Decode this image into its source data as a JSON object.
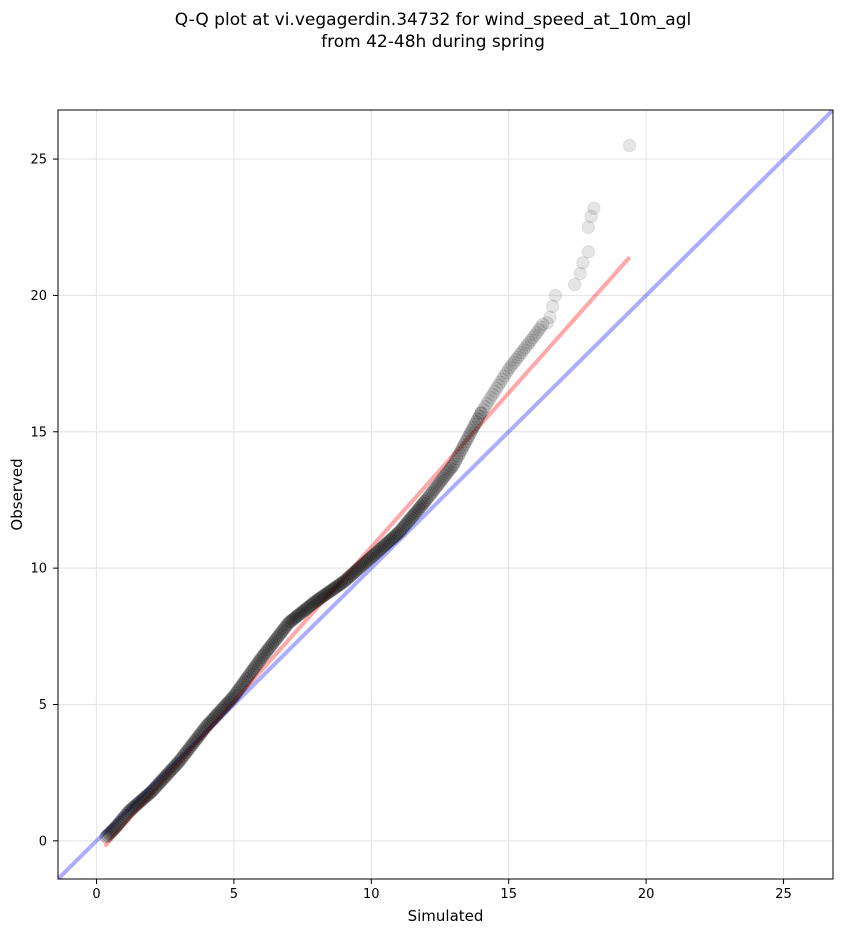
{
  "chart_data": {
    "type": "scatter",
    "title": "Q-Q plot at vi.vegagerdin.34732 for wind_speed_at_10m_agl",
    "subtitle": "from 42-48h during spring",
    "xlabel": "Simulated",
    "ylabel": "Observed",
    "xlim": [
      -1.4,
      26.8
    ],
    "ylim": [
      -1.4,
      26.8
    ],
    "x_ticks": [
      0,
      5,
      10,
      15,
      20,
      25
    ],
    "y_ticks": [
      0,
      5,
      10,
      15,
      20,
      25
    ],
    "x_tick_labels": [
      "0",
      "5",
      "10",
      "15",
      "20",
      "25"
    ],
    "y_tick_labels": [
      "0",
      "5",
      "10",
      "15",
      "20",
      "25"
    ],
    "grid": true,
    "points_color": "#000000",
    "points_curve": [
      [
        0.3,
        0.1
      ],
      [
        0.7,
        0.5
      ],
      [
        1.2,
        1.1
      ],
      [
        2.0,
        1.8
      ],
      [
        3.0,
        2.9
      ],
      [
        4.0,
        4.2
      ],
      [
        5.0,
        5.3
      ],
      [
        6.0,
        6.7
      ],
      [
        7.0,
        8.0
      ],
      [
        8.0,
        8.8
      ],
      [
        9.0,
        9.5
      ],
      [
        10.0,
        10.4
      ],
      [
        11.0,
        11.3
      ],
      [
        12.0,
        12.5
      ],
      [
        13.0,
        13.8
      ],
      [
        14.0,
        15.7
      ],
      [
        15.0,
        17.3
      ],
      [
        16.0,
        18.6
      ],
      [
        17.0,
        20.0
      ],
      [
        18.0,
        22.5
      ],
      [
        19.0,
        24.9
      ]
    ],
    "series": [
      {
        "name": "Q-Q points",
        "type": "scatter",
        "color": "#000000",
        "points": [
          [
            16.4,
            19.0
          ],
          [
            16.5,
            19.2
          ],
          [
            16.6,
            19.6
          ],
          [
            16.7,
            20.0
          ],
          [
            17.4,
            20.4
          ],
          [
            17.6,
            20.8
          ],
          [
            17.7,
            21.2
          ],
          [
            17.9,
            21.6
          ],
          [
            17.9,
            22.5
          ],
          [
            18.0,
            22.9
          ],
          [
            18.1,
            23.2
          ],
          [
            19.4,
            25.5
          ]
        ]
      },
      {
        "name": "Fit line",
        "type": "line",
        "color": "#ff0000",
        "x": [
          0.3,
          19.4
        ],
        "y": [
          -0.2,
          21.4
        ]
      },
      {
        "name": "1:1 line",
        "type": "line",
        "color": "#0000ff",
        "x": [
          -1.4,
          26.8
        ],
        "y": [
          -1.4,
          26.8
        ]
      }
    ]
  }
}
